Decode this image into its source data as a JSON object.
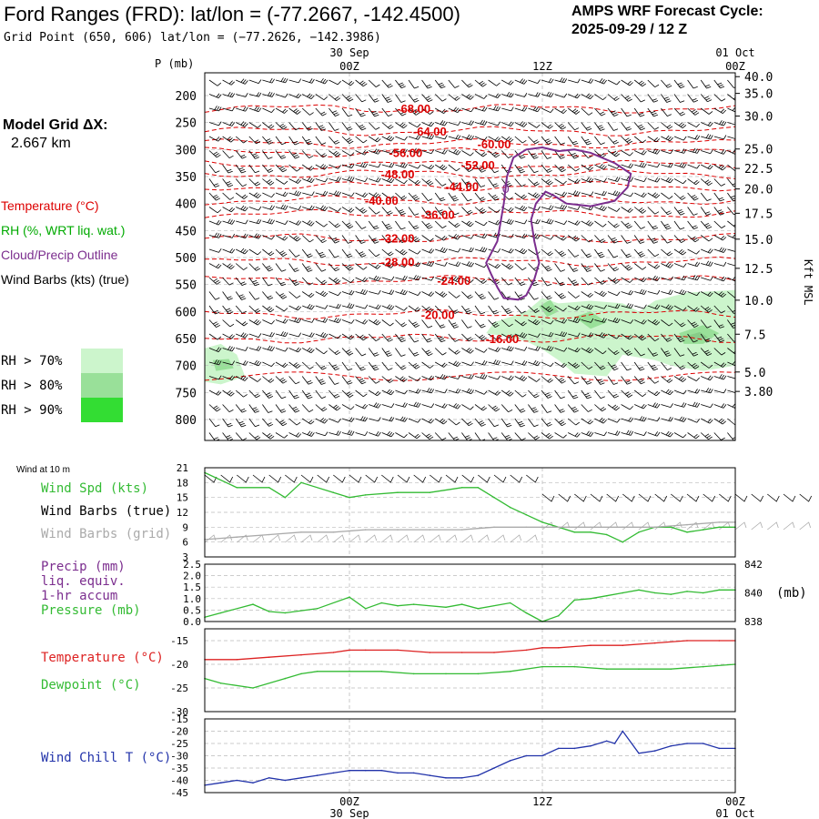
{
  "header": {
    "title": "Ford Ranges (FRD):  lat/lon = (-77.2667, -142.4500)",
    "subtitle": "Grid Point (650, 606) lat/lon = (−77.2626, −142.3986)",
    "cycle_line1": "AMPS WRF Forecast Cycle:",
    "cycle_line2": "2025-09-29 / 12  Z"
  },
  "left_panel": {
    "grid_label": "Model Grid ΔX:",
    "grid_value": "2.667 km",
    "legend_items": [
      {
        "label": "Temperature (°C)",
        "color": "#dd0000"
      },
      {
        "label": "RH (%, WRT liq. wat.)",
        "color": "#00aa00"
      },
      {
        "label": "Cloud/Precip Outline",
        "color": "#7b2d8e"
      },
      {
        "label": "Wind Barbs (kts) (true)",
        "color": "#000000"
      }
    ],
    "rh_scale": [
      {
        "label": "RH > 70%",
        "color": "#ccf5cc"
      },
      {
        "label": "RH > 80%",
        "color": "#99e099"
      },
      {
        "label": "RH > 90%",
        "color": "#33dd33"
      }
    ]
  },
  "time_axis": {
    "top_dates": [
      "30 Sep",
      "01 Oct"
    ],
    "ticks": [
      "00Z",
      "12Z",
      "00Z"
    ],
    "tick_hours": [
      0,
      12,
      24
    ],
    "bottom_dates": [
      "30 Sep",
      "01 Oct"
    ]
  },
  "chart_data": [
    {
      "type": "heatmap",
      "name_text": "",
      "x_unit": "forecast hour",
      "xlim": [
        -9,
        24
      ],
      "ylabel": "P (mb)",
      "y_ticks_left": [
        200,
        250,
        300,
        350,
        400,
        450,
        500,
        550,
        600,
        650,
        700,
        750,
        800
      ],
      "right_axis_label": "Kft MSL",
      "right_ticks": [
        {
          "label": "40.0",
          "p": 165
        },
        {
          "label": "35.0",
          "p": 196
        },
        {
          "label": "30.0",
          "p": 238
        },
        {
          "label": "25.0",
          "p": 299
        },
        {
          "label": "22.5",
          "p": 335
        },
        {
          "label": "20.0",
          "p": 373
        },
        {
          "label": "17.5",
          "p": 418
        },
        {
          "label": "15.0",
          "p": 466
        },
        {
          "label": "12.5",
          "p": 520
        },
        {
          "label": "10.0",
          "p": 579
        },
        {
          "label": "7.5",
          "p": 642
        },
        {
          "label": "5.0",
          "p": 712
        },
        {
          "label": "3.80",
          "p": 748
        }
      ],
      "temperature_labels": [
        {
          "text": "-68.00",
          "hour": 4.0,
          "p": 224
        },
        {
          "text": "-64.00",
          "hour": 5.0,
          "p": 266
        },
        {
          "text": "-60.00",
          "hour": 9.0,
          "p": 289
        },
        {
          "text": "-56.00",
          "hour": 3.5,
          "p": 305
        },
        {
          "text": "-52.00",
          "hour": 8.0,
          "p": 328
        },
        {
          "text": "-48.00",
          "hour": 3.0,
          "p": 345
        },
        {
          "text": "-44.00",
          "hour": 7.0,
          "p": 368
        },
        {
          "text": "-40.00",
          "hour": 2.0,
          "p": 394
        },
        {
          "text": "-36.00",
          "hour": 5.5,
          "p": 420
        },
        {
          "text": "-32.00",
          "hour": 3.0,
          "p": 464
        },
        {
          "text": "-28.00",
          "hour": 3.0,
          "p": 508
        },
        {
          "text": "-24.00",
          "hour": 6.5,
          "p": 542
        },
        {
          "text": "-20.00",
          "hour": 5.5,
          "p": 605
        },
        {
          "text": "-16.00",
          "hour": 9.5,
          "p": 650
        }
      ],
      "cloud_label": {
        "text": "0",
        "hour": 9.5,
        "p": 380
      }
    },
    {
      "type": "line",
      "side_labels": [
        "Wind Spd (kts)",
        "Wind Barbs (true)",
        "Wind Barbs (grid)"
      ],
      "corner_label": "Wind at 10 m",
      "yticks": [
        3,
        6,
        9,
        12,
        15,
        18,
        21
      ],
      "ylim": [
        3,
        21
      ],
      "series": [
        {
          "color": "#33bb33",
          "x": [
            -9,
            -7,
            -5,
            -4,
            -3,
            -1,
            0,
            1,
            3,
            5,
            7,
            8,
            9,
            10,
            11,
            12,
            13,
            14,
            15,
            16,
            17,
            18,
            19,
            20,
            21,
            22,
            23,
            24
          ],
          "values": [
            20,
            17,
            17,
            15,
            18,
            16,
            15,
            15.5,
            16,
            16,
            17,
            17,
            15,
            13,
            11.5,
            10,
            9,
            8,
            8,
            7.5,
            6,
            8,
            9,
            9,
            8,
            8.5,
            9,
            9
          ]
        },
        {
          "color": "#aaaaaa",
          "x": [
            -9,
            -7,
            -5,
            -3,
            -1,
            1,
            3,
            5,
            7,
            9,
            11,
            13,
            15,
            17,
            19,
            21,
            23,
            24
          ],
          "values": [
            6.5,
            7,
            7.5,
            8,
            8,
            8.5,
            8.5,
            8.5,
            8.5,
            9,
            9,
            9,
            9,
            9,
            9,
            9.5,
            10,
            10
          ]
        }
      ]
    },
    {
      "type": "line",
      "side_labels": [
        "Precip (mm)",
        "liq. equiv.",
        "1-hr accum",
        "Pressure (mb)"
      ],
      "yticks_left": [
        "0.0",
        "0.5",
        "1.0",
        "1.5",
        "2.0",
        "2.5"
      ],
      "ylim_left": [
        0,
        2.5
      ],
      "yticks_right": [
        "838",
        "840",
        "842"
      ],
      "right_unit": "(mb)",
      "ylim_right": [
        838,
        842
      ],
      "series": [
        {
          "color": "#33bb33",
          "x": [
            -9,
            -8,
            -6,
            -5,
            -4,
            -2,
            0,
            1,
            2,
            3,
            4,
            6,
            7,
            8,
            10,
            11,
            12,
            13,
            14,
            15,
            16,
            17,
            18,
            19,
            20,
            21,
            22,
            23,
            24
          ],
          "values_mb": [
            838.3,
            838.6,
            839.2,
            838.7,
            838.6,
            838.9,
            839.7,
            838.9,
            839.3,
            839.1,
            839.2,
            839.0,
            839.2,
            838.9,
            839.3,
            838.6,
            838.0,
            838.4,
            839.5,
            839.6,
            839.8,
            840.0,
            840.2,
            840.0,
            839.9,
            840.1,
            840.0,
            840.2,
            840.2
          ]
        }
      ]
    },
    {
      "type": "line",
      "side_labels": [
        "Temperature (°C)",
        "Dewpoint (°C)"
      ],
      "yticks": [
        -30,
        -25,
        -20,
        -15
      ],
      "ylim": [
        -30,
        -12.5
      ],
      "series": [
        {
          "color": "#dd2222",
          "x": [
            -9,
            -7,
            -5,
            -3,
            -1,
            0,
            1,
            3,
            5,
            7,
            9,
            11,
            12,
            13,
            15,
            17,
            19,
            21,
            23,
            24
          ],
          "values": [
            -19,
            -19,
            -18.5,
            -18,
            -17.5,
            -17,
            -17,
            -17,
            -17.5,
            -17.5,
            -17.5,
            -17,
            -16.5,
            -16.5,
            -16,
            -16,
            -15.5,
            -15,
            -15,
            -15
          ]
        },
        {
          "color": "#33bb33",
          "x": [
            -9,
            -8,
            -6,
            -4,
            -3,
            -2,
            0,
            2,
            4,
            6,
            8,
            10,
            12,
            14,
            16,
            18,
            20,
            22,
            24
          ],
          "values": [
            -23,
            -24,
            -25,
            -23,
            -22,
            -21.5,
            -21.5,
            -21.5,
            -22,
            -22,
            -22,
            -21.5,
            -20.5,
            -20.5,
            -21,
            -21,
            -21,
            -20.5,
            -20
          ]
        }
      ]
    },
    {
      "type": "line",
      "side_labels": [
        "Wind Chill T (°C)"
      ],
      "yticks": [
        -45,
        -40,
        -35,
        -30,
        -25,
        -20,
        -15
      ],
      "ylim": [
        -45,
        -15
      ],
      "series": [
        {
          "color": "#2233aa",
          "x": [
            -9,
            -8,
            -7,
            -6,
            -5,
            -4,
            -3,
            -2,
            -1,
            0,
            1,
            2,
            3,
            4,
            5,
            6,
            7,
            8,
            9,
            10,
            11,
            12,
            13,
            14,
            15,
            16,
            16.5,
            17,
            18,
            19,
            20,
            21,
            22,
            23,
            24
          ],
          "values": [
            -42,
            -41,
            -40,
            -41,
            -39,
            -40,
            -39,
            -38,
            -37,
            -36,
            -36,
            -36,
            -37,
            -37,
            -38,
            -39,
            -39,
            -38,
            -35,
            -32,
            -30,
            -30,
            -27,
            -27,
            -26,
            -24,
            -25,
            -20,
            -29,
            -28,
            -26,
            -25,
            -25,
            -27,
            -27
          ]
        }
      ]
    }
  ]
}
